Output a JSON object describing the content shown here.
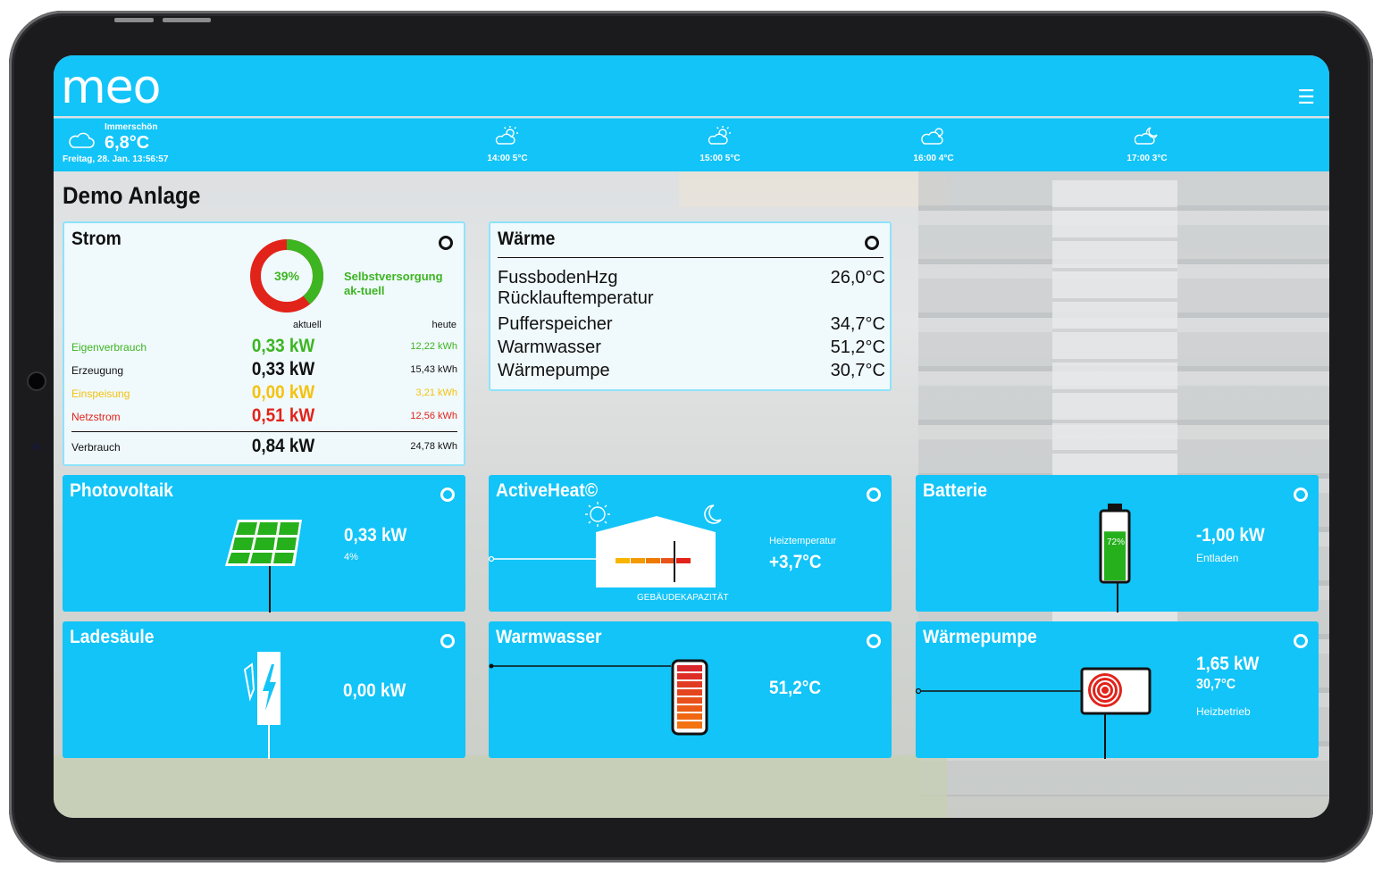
{
  "app": {
    "logo_text": "meo",
    "menu_icon": "hamburger-icon"
  },
  "weather": {
    "current": {
      "place": "Immerschön",
      "temp": "6,8°C",
      "date": "Freitag, 28. Jan. 13:56:57",
      "icon": "cloud-icon"
    },
    "forecast": [
      {
        "label": "14:00 5°C",
        "icon": "sun-cloud-icon"
      },
      {
        "label": "15:00 5°C",
        "icon": "sun-cloud-icon"
      },
      {
        "label": "16:00 4°C",
        "icon": "cloud-sun-icon"
      },
      {
        "label": "17:00 3°C",
        "icon": "cloud-moon-icon"
      }
    ]
  },
  "page_title": "Demo Anlage",
  "strom": {
    "title": "Strom",
    "self_supply_percent": "39%",
    "self_supply_fraction": 0.39,
    "self_supply_label": "Selbstversorgung ak-tuell",
    "col_current": "aktuell",
    "col_today": "heute",
    "rows": [
      {
        "label": "Eigenverbrauch",
        "current": "0,33 kW",
        "today": "12,22 kWh",
        "color": "#3cb521"
      },
      {
        "label": "Erzeugung",
        "current": "0,33 kW",
        "today": "15,43 kWh",
        "color": "#111111"
      },
      {
        "label": "Einspeisung",
        "current": "0,00 kW",
        "today": "3,21 kWh",
        "color": "#f4c20d"
      },
      {
        "label": "Netzstrom",
        "current": "0,51 kW",
        "today": "12,56 kWh",
        "color": "#e2231a"
      }
    ],
    "total": {
      "label": "Verbrauch",
      "current": "0,84 kW",
      "today": "24,78 kWh"
    }
  },
  "waerme": {
    "title": "Wärme",
    "rows": [
      {
        "label": "FussbodenHzg Rücklauftemperatur",
        "label1": "FussbodenHzg",
        "label2": "Rücklauftemperatur",
        "value": "26,0°C"
      },
      {
        "label": "Pufferspeicher",
        "value": "34,7°C"
      },
      {
        "label": "Warmwasser",
        "value": "51,2°C"
      },
      {
        "label": "Wärmepumpe",
        "value": "30,7°C"
      }
    ]
  },
  "photovoltaik": {
    "title": "Photovoltaik",
    "value": "0,33 kW",
    "sub": "4%"
  },
  "activeheat": {
    "title": "ActiveHeat©",
    "caption": "GEBÄUDEKAPAZITÄT",
    "temp_label": "Heiztemperatur",
    "temp_value": "+3,7°C"
  },
  "batterie": {
    "title": "Batterie",
    "value": "-1,00 kW",
    "sub": "Entladen",
    "soc": "72%",
    "soc_fraction": 0.72
  },
  "ladesaeule": {
    "title": "Ladesäule",
    "value": "0,00 kW"
  },
  "warmwasser": {
    "title": "Warmwasser",
    "value": "51,2°C"
  },
  "waermepumpe": {
    "title": "Wärmepumpe",
    "value": "1,65 kW",
    "temp": "30,7°C",
    "sub": "Heizbetrieb"
  },
  "colors": {
    "accent": "#12c4f8",
    "green": "#3cb521",
    "red": "#e2231a",
    "yellow": "#f4c20d"
  }
}
